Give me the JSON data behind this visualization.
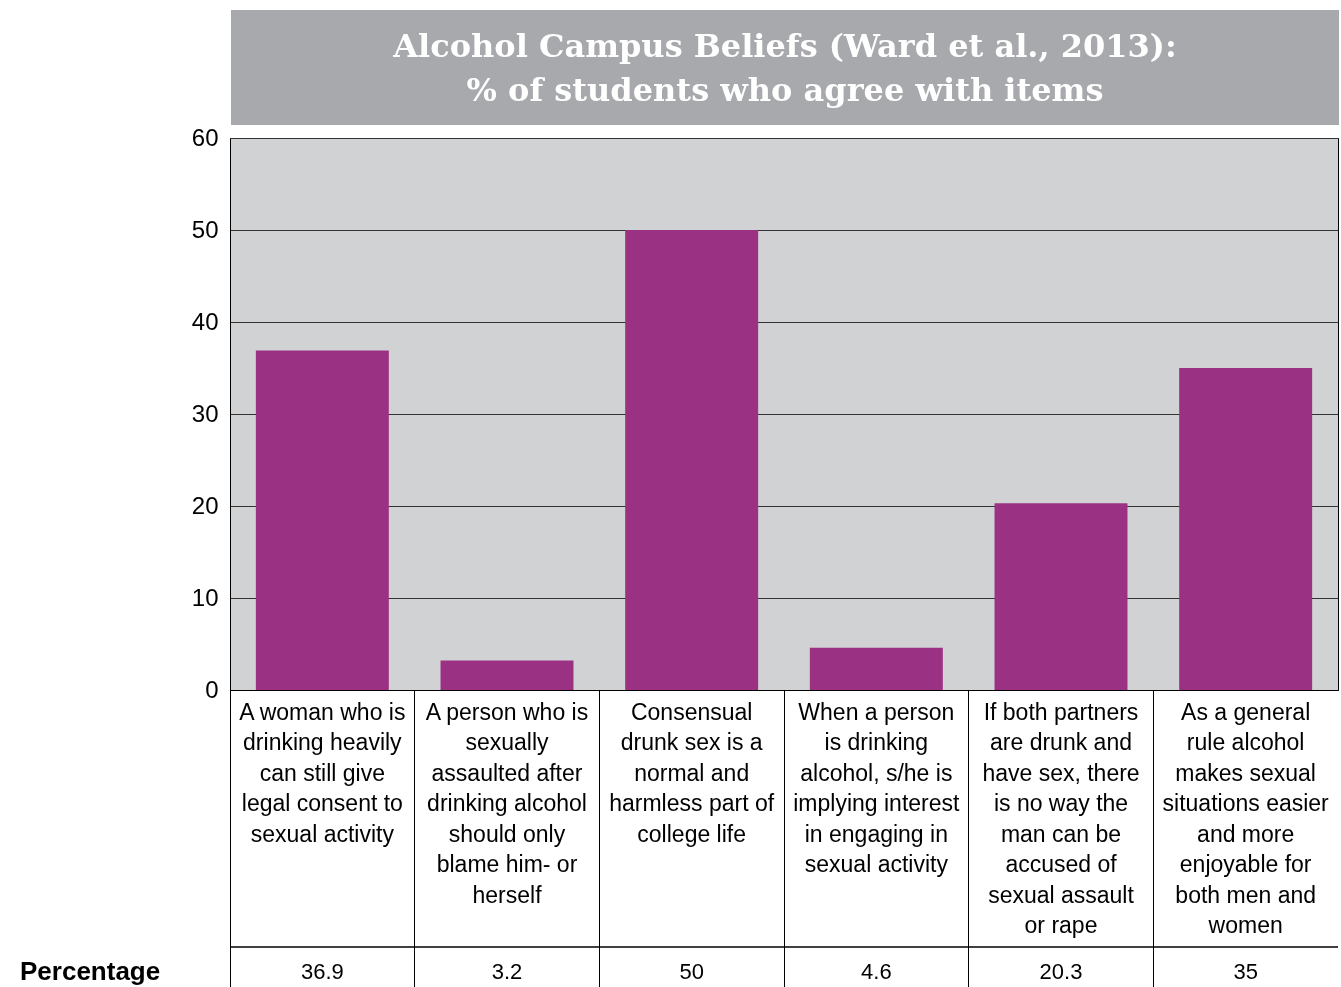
{
  "chart_data": {
    "type": "bar",
    "title": "Alcohol Campus Beliefs (Ward et al., 2013):",
    "subtitle": "% of students who agree with items",
    "categories": [
      "A woman who is drinking heavily can still give legal consent to sexual activity",
      "A person who is sexually assaulted after drinking alcohol should only blame him- or herself",
      "Consensual drunk sex is a normal and harmless part of college life",
      "When a person is drinking alcohol, s/he is implying interest in engaging in sexual activity",
      "If both partners are drunk and have sex, there is no way the man can be accused of sexual assault or rape",
      "As a general rule alcohol makes sexual situations easier and more enjoyable for both men and women"
    ],
    "values": [
      36.9,
      3.2,
      50,
      4.6,
      20.3,
      35
    ],
    "color": "#9b3183",
    "ylim": [
      0,
      60
    ],
    "yticks": [
      0,
      10,
      20,
      30,
      40,
      50,
      60
    ],
    "grid": "y",
    "data_labels": true,
    "annotations": [
      "Percentage"
    ]
  }
}
